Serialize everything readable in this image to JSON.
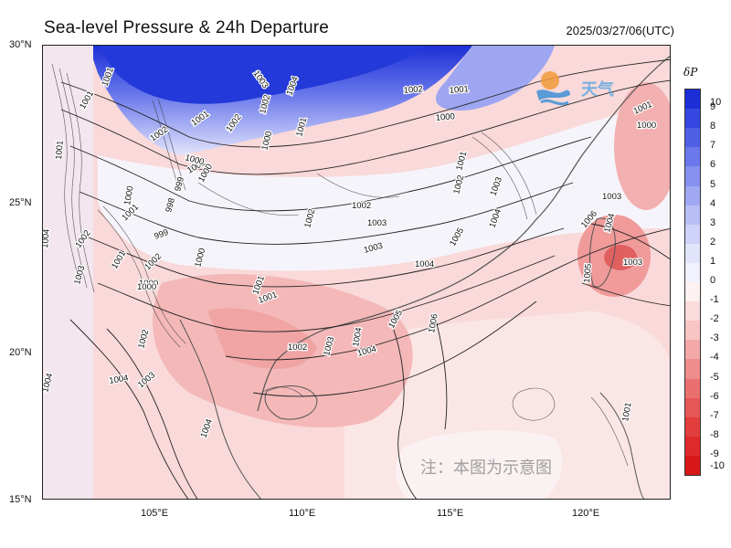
{
  "title": "Sea-level Pressure & 24h Departure",
  "timestamp": "2025/03/27/06(UTC)",
  "axes": {
    "lat_labels": [
      "30°N",
      "25°N",
      "20°N",
      "15°N"
    ],
    "lon_labels": [
      "105°E",
      "110°E",
      "115°E",
      "120°E"
    ]
  },
  "colorbar": {
    "title": "δP",
    "ticks": [
      "10",
      "9",
      "8",
      "7",
      "6",
      "5",
      "4",
      "3",
      "2",
      "1",
      "0",
      "-1",
      "-2",
      "-3",
      "-4",
      "-5",
      "-6",
      "-7",
      "-8",
      "-9",
      "-10"
    ],
    "colors": [
      "#1c2fd6",
      "#3547e0",
      "#4f5fe6",
      "#6a78eb",
      "#8590ef",
      "#a0a8f3",
      "#b9bff6",
      "#cfd3f9",
      "#e2e4fb",
      "#f1f2fd",
      "#fdf1f1",
      "#fbdcdc",
      "#f8c4c4",
      "#f4a9a9",
      "#ef8c8c",
      "#ea7070",
      "#e65656",
      "#e23e3e",
      "#de2a2a",
      "#d81818"
    ]
  },
  "isobar_labels": [
    {
      "text": "1003"
    },
    {
      "text": "1004"
    },
    {
      "text": "1002"
    },
    {
      "text": "1002"
    },
    {
      "text": "1001"
    },
    {
      "text": "1002"
    },
    {
      "text": "1001"
    },
    {
      "text": "1000"
    },
    {
      "text": "1001"
    },
    {
      "text": "1001"
    },
    {
      "text": "1000"
    },
    {
      "text": "1002"
    },
    {
      "text": "1001"
    },
    {
      "text": "1000"
    },
    {
      "text": "1001"
    },
    {
      "text": "1001"
    },
    {
      "text": "1000"
    },
    {
      "text": "999"
    },
    {
      "text": "998"
    },
    {
      "text": "1001"
    },
    {
      "text": "1000"
    },
    {
      "text": "1002"
    },
    {
      "text": "1004"
    },
    {
      "text": "1002"
    },
    {
      "text": "1003"
    },
    {
      "text": "1001"
    },
    {
      "text": "1000"
    },
    {
      "text": "1001"
    },
    {
      "text": "999"
    },
    {
      "text": "1000"
    },
    {
      "text": "1002"
    },
    {
      "text": "1003"
    },
    {
      "text": "1003"
    },
    {
      "text": "1001"
    },
    {
      "text": "1002"
    },
    {
      "text": "1003"
    },
    {
      "text": "1004"
    },
    {
      "text": "1005"
    },
    {
      "text": "1002"
    },
    {
      "text": "1004"
    },
    {
      "text": "1005"
    },
    {
      "text": "1006"
    },
    {
      "text": "1002"
    },
    {
      "text": "1004"
    },
    {
      "text": "1002"
    },
    {
      "text": "1000"
    },
    {
      "text": "1001"
    },
    {
      "text": "1003"
    },
    {
      "text": "1004"
    },
    {
      "text": "1006"
    },
    {
      "text": "1003"
    },
    {
      "text": "1004"
    },
    {
      "text": "1005"
    },
    {
      "text": "1003"
    },
    {
      "text": "1004"
    },
    {
      "text": "1001"
    },
    {
      "text": "1000"
    },
    {
      "text": "1004"
    },
    {
      "text": "1001"
    },
    {
      "text": "1004"
    },
    {
      "text": "1003"
    }
  ],
  "logo_text": "天气",
  "watermark": "注：本图为示意图"
}
